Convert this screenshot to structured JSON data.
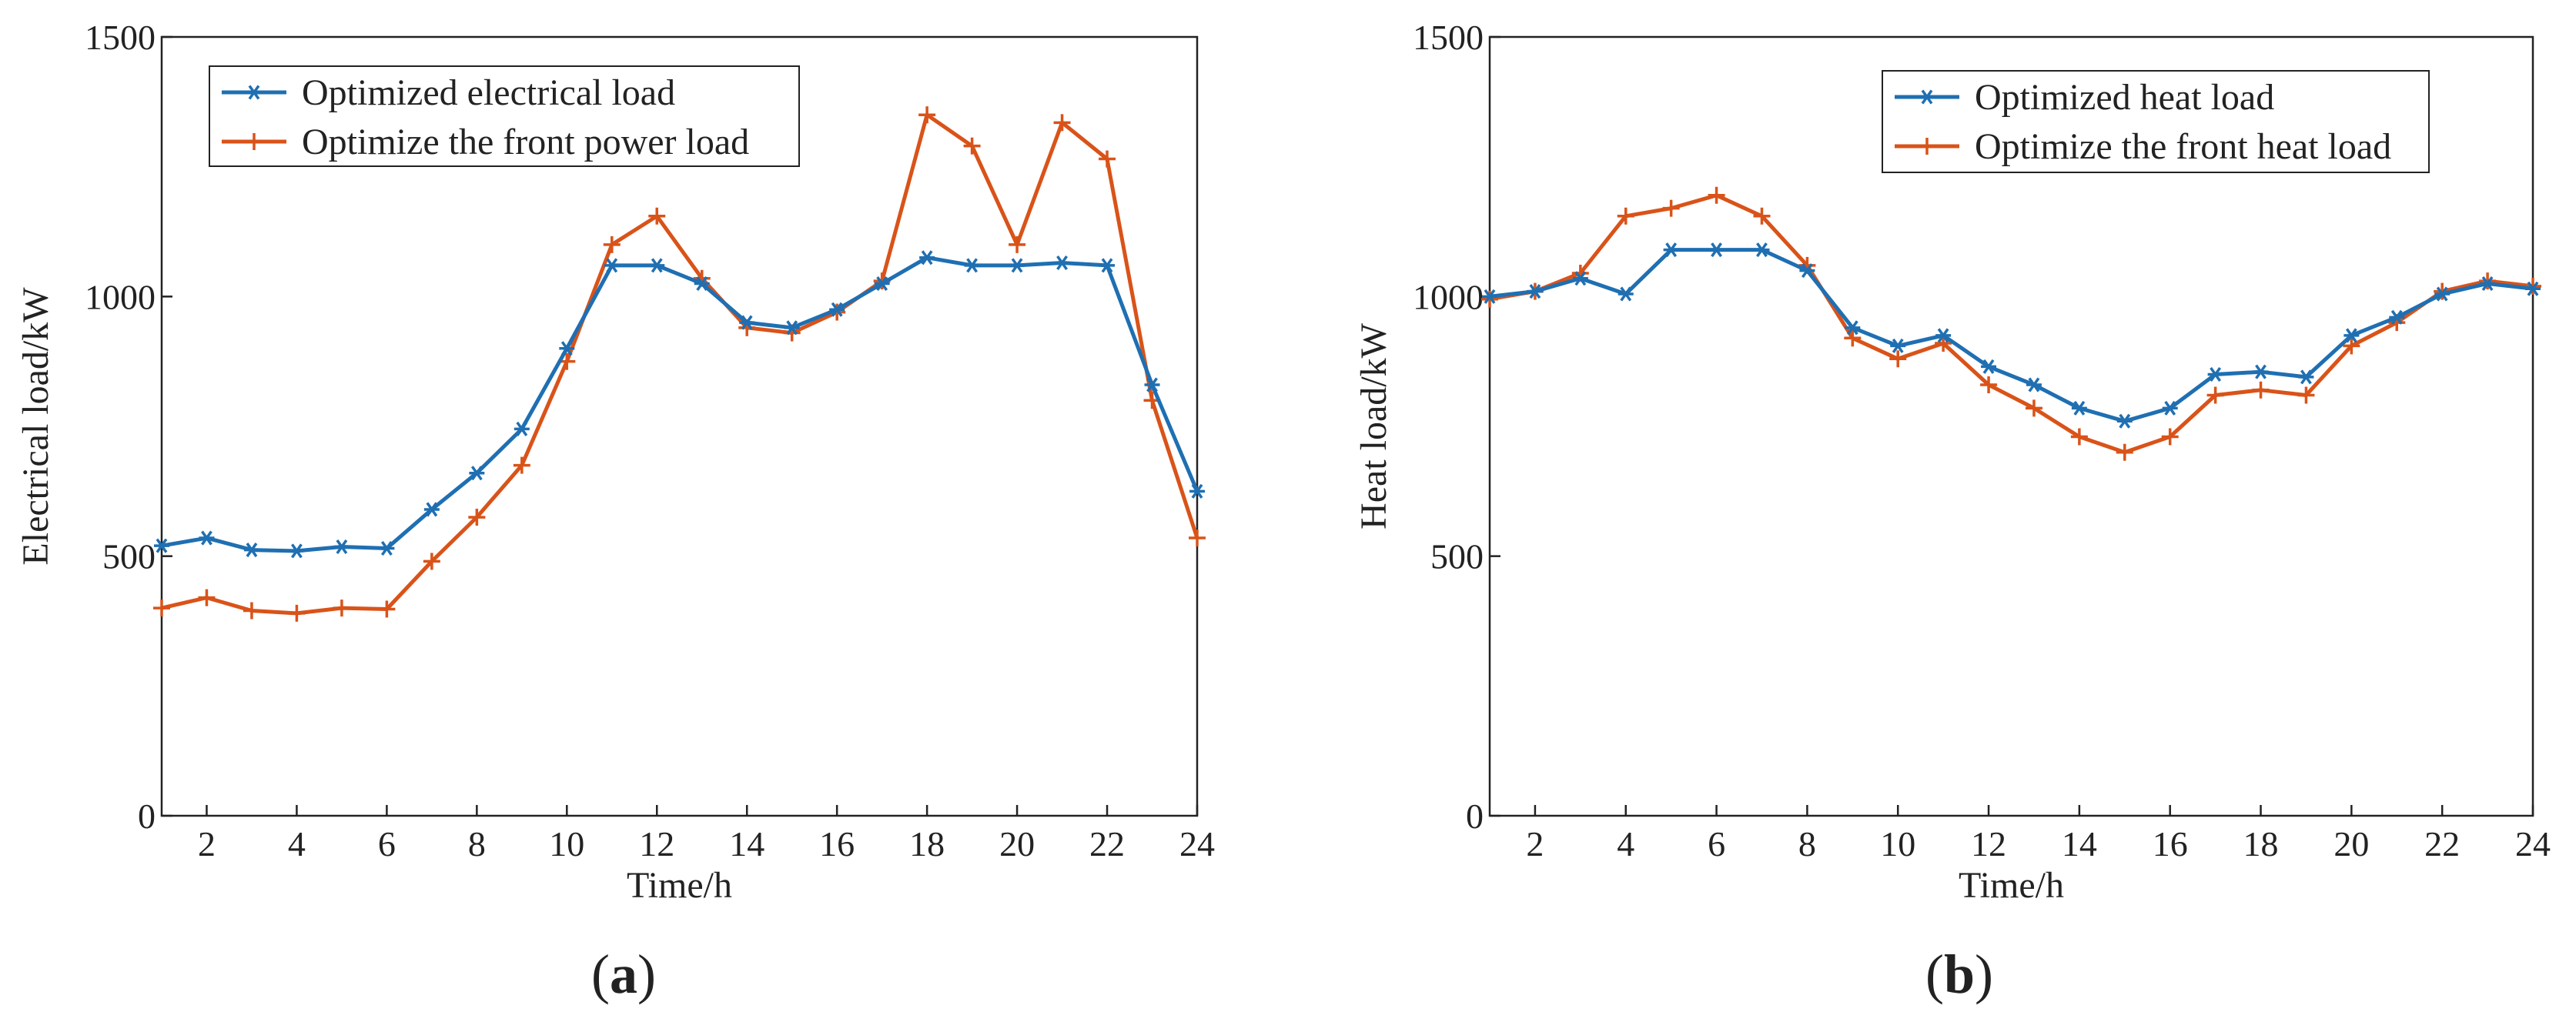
{
  "panels": [
    {
      "panel_label": "(a)",
      "panel_letter": "a"
    },
    {
      "panel_label": "(b)",
      "panel_letter": "b"
    }
  ],
  "colors": {
    "optimized": "#1f6fb2",
    "before": "#d95319",
    "axis": "#222222"
  },
  "chart_data": [
    {
      "type": "line",
      "title": "",
      "xlabel": "Time/h",
      "ylabel": "Electrical load/kW",
      "xlim": [
        1,
        24
      ],
      "ylim": [
        0,
        1500
      ],
      "xticks": [
        2,
        4,
        6,
        8,
        10,
        12,
        14,
        16,
        18,
        20,
        22,
        24
      ],
      "yticks": [
        0,
        500,
        1000,
        1500
      ],
      "grid": false,
      "legend_position": "top-left",
      "x": [
        1,
        2,
        3,
        4,
        5,
        6,
        7,
        8,
        9,
        10,
        11,
        12,
        13,
        14,
        15,
        16,
        17,
        18,
        19,
        20,
        21,
        22,
        23,
        24
      ],
      "series": [
        {
          "name": "Optimized electrical load",
          "marker": "asterisk",
          "color": "#1f6fb2",
          "values": [
            520,
            535,
            512,
            510,
            518,
            515,
            590,
            660,
            745,
            900,
            1060,
            1060,
            1025,
            950,
            940,
            975,
            1025,
            1075,
            1060,
            1060,
            1065,
            1060,
            830,
            625
          ]
        },
        {
          "name": "Optimize the front power load",
          "marker": "plus",
          "color": "#d95319",
          "values": [
            400,
            420,
            395,
            390,
            400,
            398,
            490,
            575,
            675,
            875,
            1100,
            1155,
            1035,
            940,
            930,
            970,
            1030,
            1350,
            1290,
            1100,
            1335,
            1265,
            800,
            535
          ]
        }
      ]
    },
    {
      "type": "line",
      "title": "",
      "xlabel": "Time/h",
      "ylabel": "Heat load/kW",
      "xlim": [
        1,
        24
      ],
      "ylim": [
        0,
        1500
      ],
      "xticks": [
        2,
        4,
        6,
        8,
        10,
        12,
        14,
        16,
        18,
        20,
        22,
        24
      ],
      "yticks": [
        0,
        500,
        1000,
        1500
      ],
      "grid": false,
      "legend_position": "top-right",
      "x": [
        1,
        2,
        3,
        4,
        5,
        6,
        7,
        8,
        9,
        10,
        11,
        12,
        13,
        14,
        15,
        16,
        17,
        18,
        19,
        20,
        21,
        22,
        23,
        24
      ],
      "series": [
        {
          "name": "Optimized heat load",
          "marker": "asterisk",
          "color": "#1f6fb2",
          "values": [
            1000,
            1010,
            1035,
            1005,
            1090,
            1090,
            1090,
            1050,
            940,
            905,
            925,
            865,
            830,
            785,
            760,
            785,
            850,
            855,
            845,
            925,
            960,
            1005,
            1025,
            1015
          ]
        },
        {
          "name": "Optimize the front heat load",
          "marker": "plus",
          "color": "#d95319",
          "values": [
            995,
            1010,
            1045,
            1155,
            1170,
            1195,
            1155,
            1060,
            920,
            880,
            910,
            830,
            785,
            730,
            700,
            730,
            810,
            820,
            810,
            905,
            950,
            1010,
            1030,
            1020
          ]
        }
      ]
    }
  ]
}
